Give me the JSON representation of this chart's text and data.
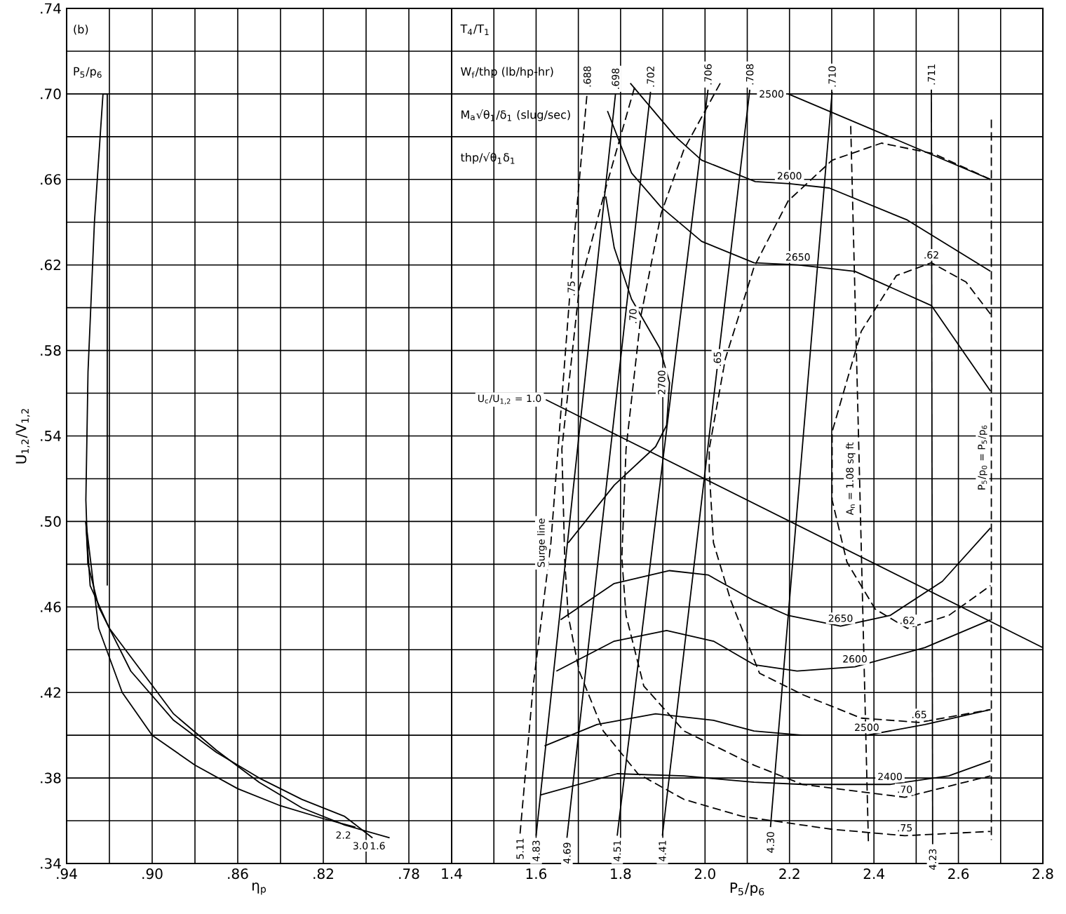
{
  "chart_data": [
    {
      "type": "line",
      "xlabel": "η$_{p}$",
      "ylabel": "U$_{1,2}$/V$_{1,2}$",
      "xlim": [
        0.94,
        0.76
      ],
      "xticks": [
        {
          "value": 0.94,
          "label": ".94"
        },
        {
          "value": 0.92,
          "label": null
        },
        {
          "value": 0.9,
          "label": ".90"
        },
        {
          "value": 0.88,
          "label": null
        },
        {
          "value": 0.86,
          "label": ".86"
        },
        {
          "value": 0.84,
          "label": null
        },
        {
          "value": 0.82,
          "label": ".82"
        },
        {
          "value": 0.8,
          "label": null
        },
        {
          "value": 0.78,
          "label": ".78"
        },
        {
          "value": 0.76,
          "label": null
        }
      ],
      "ylim": [
        0.34,
        0.74
      ],
      "yticks": [
        {
          "value": 0.34,
          "label": ".34"
        },
        {
          "value": 0.36,
          "label": null
        },
        {
          "value": 0.38,
          "label": ".38"
        },
        {
          "value": 0.4,
          "label": null
        },
        {
          "value": 0.42,
          "label": ".42"
        },
        {
          "value": 0.44,
          "label": null
        },
        {
          "value": 0.46,
          "label": ".46"
        },
        {
          "value": 0.48,
          "label": null
        },
        {
          "value": 0.5,
          "label": ".50"
        },
        {
          "value": 0.52,
          "label": null
        },
        {
          "value": 0.54,
          "label": ".54"
        },
        {
          "value": 0.56,
          "label": null
        },
        {
          "value": 0.58,
          "label": ".58"
        },
        {
          "value": 0.6,
          "label": null
        },
        {
          "value": 0.62,
          "label": ".62"
        },
        {
          "value": 0.64,
          "label": null
        },
        {
          "value": 0.66,
          "label": ".66"
        },
        {
          "value": 0.68,
          "label": null
        },
        {
          "value": 0.7,
          "label": ".70"
        },
        {
          "value": 0.72,
          "label": null
        },
        {
          "value": 0.74,
          "label": ".74"
        }
      ],
      "grid": true,
      "series": [
        {
          "line_style": "solid",
          "color": "#000000",
          "x": [
            0.921,
            0.921,
            0.923,
            0.927,
            0.93,
            0.931,
            0.93
          ],
          "values": [
            0.47,
            0.7,
            0.7,
            0.64,
            0.57,
            0.51,
            0.48
          ]
        },
        {
          "name": "1.6",
          "line_style": "solid",
          "color": "#000000",
          "x": [
            0.789,
            0.81,
            0.83,
            0.85,
            0.87,
            0.89,
            0.905,
            0.92,
            0.929,
            0.931
          ],
          "values": [
            0.352,
            0.358,
            0.366,
            0.378,
            0.393,
            0.41,
            0.43,
            0.45,
            0.47,
            0.5
          ]
        },
        {
          "name": "3.0",
          "line_style": "solid",
          "color": "#000000",
          "x": [
            0.797,
            0.81,
            0.83,
            0.85,
            0.87,
            0.89,
            0.91,
            0.925,
            0.93,
            0.931
          ],
          "values": [
            0.352,
            0.362,
            0.37,
            0.38,
            0.392,
            0.407,
            0.43,
            0.46,
            0.48,
            0.5
          ]
        },
        {
          "name": "2.2",
          "line_style": "solid",
          "color": "#000000",
          "x": [
            0.805,
            0.82,
            0.84,
            0.86,
            0.88,
            0.9,
            0.914,
            0.925,
            0.931
          ],
          "values": [
            0.357,
            0.361,
            0.367,
            0.375,
            0.386,
            0.4,
            0.42,
            0.45,
            0.5
          ]
        }
      ],
      "annotations": [
        "(b)",
        "P$_{5}$/p$_{6}$"
      ]
    },
    {
      "type": "line",
      "xlabel": "P$_{5}$/p$_{6}$",
      "xlim": [
        1.4,
        2.8
      ],
      "xticks": [
        {
          "value": 1.4,
          "label": "1.4"
        },
        {
          "value": 1.5,
          "label": null
        },
        {
          "value": 1.6,
          "label": "1.6"
        },
        {
          "value": 1.7,
          "label": null
        },
        {
          "value": 1.8,
          "label": "1.8"
        },
        {
          "value": 1.9,
          "label": null
        },
        {
          "value": 2.0,
          "label": "2.0"
        },
        {
          "value": 2.1,
          "label": null
        },
        {
          "value": 2.2,
          "label": "2.2"
        },
        {
          "value": 2.3,
          "label": null
        },
        {
          "value": 2.4,
          "label": "2.4"
        },
        {
          "value": 2.5,
          "label": null
        },
        {
          "value": 2.6,
          "label": "2.6"
        },
        {
          "value": 2.7,
          "label": null
        },
        {
          "value": 2.8,
          "label": "2.8"
        }
      ],
      "ylim": [
        0.34,
        0.74
      ],
      "yticks": [
        {
          "value": 0.34,
          "label": null
        },
        {
          "value": 0.36,
          "label": null
        },
        {
          "value": 0.38,
          "label": null
        },
        {
          "value": 0.4,
          "label": null
        },
        {
          "value": 0.42,
          "label": null
        },
        {
          "value": 0.44,
          "label": null
        },
        {
          "value": 0.46,
          "label": null
        },
        {
          "value": 0.48,
          "label": null
        },
        {
          "value": 0.5,
          "label": null
        },
        {
          "value": 0.52,
          "label": null
        },
        {
          "value": 0.54,
          "label": null
        },
        {
          "value": 0.56,
          "label": null
        },
        {
          "value": 0.58,
          "label": null
        },
        {
          "value": 0.6,
          "label": null
        },
        {
          "value": 0.62,
          "label": null
        },
        {
          "value": 0.64,
          "label": null
        },
        {
          "value": 0.66,
          "label": null
        },
        {
          "value": 0.68,
          "label": null
        },
        {
          "value": 0.7,
          "label": null
        },
        {
          "value": 0.72,
          "label": null
        },
        {
          "value": 0.74,
          "label": null
        }
      ],
      "tick_labels": "x",
      "grid": true,
      "series": [
        {
          "name": "5.11",
          "line_style": "dashed",
          "color": "#000000",
          "x": [
            1.562,
            1.593,
            1.635,
            1.689,
            1.721
          ],
          "values": [
            0.354,
            0.423,
            0.49,
            0.63,
            0.701
          ]
        },
        {
          "name": "4.83",
          "line_style": "solid",
          "color": "#000000",
          "x": [
            1.6,
            1.788
          ],
          "values": [
            0.353,
            0.7
          ]
        },
        {
          "name": "4.69",
          "line_style": "solid",
          "color": "#000000",
          "x": [
            1.673,
            1.871
          ],
          "values": [
            0.352,
            0.701
          ]
        },
        {
          "name": "4.51",
          "line_style": "solid",
          "color": "#000000",
          "x": [
            1.792,
            2.007
          ],
          "values": [
            0.353,
            0.702
          ]
        },
        {
          "name": "4.41",
          "line_style": "solid",
          "color": "#000000",
          "x": [
            1.899,
            2.106
          ],
          "values": [
            0.353,
            0.702
          ]
        },
        {
          "name": "4.30",
          "line_style": "solid",
          "color": "#000000",
          "x": [
            2.155,
            2.301
          ],
          "values": [
            0.357,
            0.701
          ]
        },
        {
          "name": "4.23",
          "line_style": "solid",
          "color": "#000000",
          "x": [
            2.539,
            2.536
          ],
          "values": [
            0.349,
            0.702
          ]
        },
        {
          "name": "U$_{c}$/U$_{1,2}$ = 1.0",
          "line_style": "solid",
          "color": "#000000",
          "x": [
            1.623,
            2.8
          ],
          "values": [
            0.557,
            0.441
          ]
        },
        {
          "line_style": "solid",
          "color": "#000000",
          "x": [
            2.197,
            2.676
          ],
          "values": [
            0.7,
            0.66
          ]
        },
        {
          "line_style": "solid",
          "color": "#000000",
          "x": [
            1.823,
            1.93,
            1.992,
            2.119,
            2.2,
            2.294,
            2.479,
            2.676
          ],
          "values": [
            0.705,
            0.68,
            0.669,
            0.659,
            0.658,
            0.656,
            0.641,
            0.617
          ]
        },
        {
          "line_style": "solid",
          "color": "#000000",
          "x": [
            1.769,
            1.826,
            1.896,
            1.992,
            2.116,
            2.22,
            2.355,
            2.536,
            2.676
          ],
          "values": [
            0.692,
            0.663,
            0.647,
            0.631,
            0.621,
            0.62,
            0.617,
            0.601,
            0.561
          ]
        },
        {
          "line_style": "solid",
          "color": "#000000",
          "x": [
            1.765,
            1.785,
            1.826,
            1.893,
            1.916,
            1.909,
            1.883,
            1.785,
            1.676
          ],
          "values": [
            0.652,
            0.628,
            0.604,
            0.581,
            0.565,
            0.545,
            0.535,
            0.517,
            0.49
          ]
        },
        {
          "line_style": "solid",
          "color": "#000000",
          "x": [
            1.658,
            1.785,
            1.916,
            2.007,
            2.116,
            2.197,
            2.321,
            2.438,
            2.562,
            2.676
          ],
          "values": [
            0.454,
            0.471,
            0.477,
            0.475,
            0.463,
            0.456,
            0.451,
            0.456,
            0.472,
            0.497
          ]
        },
        {
          "line_style": "solid",
          "color": "#000000",
          "x": [
            1.648,
            1.785,
            1.909,
            2.02,
            2.116,
            2.218,
            2.355,
            2.521,
            2.676
          ],
          "values": [
            0.43,
            0.444,
            0.449,
            0.444,
            0.433,
            0.43,
            0.432,
            0.441,
            0.454
          ]
        },
        {
          "line_style": "solid",
          "color": "#000000",
          "x": [
            1.62,
            1.744,
            1.883,
            2.02,
            2.116,
            2.231,
            2.383,
            2.521,
            2.676
          ],
          "values": [
            0.395,
            0.405,
            0.41,
            0.407,
            0.402,
            0.4,
            0.4,
            0.405,
            0.412
          ]
        },
        {
          "line_style": "solid",
          "color": "#000000",
          "x": [
            1.61,
            1.792,
            1.95,
            2.116,
            2.231,
            2.438,
            2.577,
            2.676
          ],
          "values": [
            0.372,
            0.382,
            0.381,
            0.378,
            0.377,
            0.377,
            0.381,
            0.388
          ]
        },
        {
          "line_style": "dashed",
          "color": "#000000",
          "x": [
            1.833,
            1.765,
            1.702,
            1.661,
            1.668,
            1.676,
            1.702,
            1.759,
            1.841,
            1.95,
            2.089,
            2.301,
            2.473,
            2.676
          ],
          "values": [
            0.703,
            0.656,
            0.609,
            0.534,
            0.481,
            0.456,
            0.43,
            0.402,
            0.382,
            0.37,
            0.362,
            0.356,
            0.353,
            0.355
          ]
        },
        {
          "line_style": "dashed",
          "color": "#000000",
          "x": [
            2.036,
            1.95,
            1.896,
            1.848,
            1.813,
            1.803,
            1.813,
            1.855,
            1.95,
            2.116,
            2.231,
            2.473,
            2.676
          ],
          "values": [
            0.705,
            0.674,
            0.644,
            0.596,
            0.534,
            0.483,
            0.456,
            0.423,
            0.402,
            0.386,
            0.377,
            0.371,
            0.381
          ]
        },
        {
          "line_style": "dashed",
          "color": "#000000",
          "x": [
            2.676,
            2.542,
            2.418,
            2.301,
            2.197,
            2.116,
            2.048,
            2.01,
            2.01,
            2.02,
            2.061,
            2.129,
            2.231,
            2.37,
            2.507,
            2.676
          ],
          "values": [
            0.66,
            0.672,
            0.677,
            0.669,
            0.65,
            0.619,
            0.576,
            0.534,
            0.524,
            0.49,
            0.463,
            0.429,
            0.419,
            0.408,
            0.406,
            0.412
          ]
        },
        {
          "line_style": "dashed",
          "color": "#000000",
          "x": [
            2.676,
            2.618,
            2.536,
            2.453,
            2.37,
            2.301,
            2.301,
            2.336,
            2.403,
            2.479,
            2.577,
            2.676
          ],
          "values": [
            0.597,
            0.612,
            0.621,
            0.615,
            0.589,
            0.542,
            0.51,
            0.481,
            0.459,
            0.45,
            0.456,
            0.47
          ]
        },
        {
          "line_style": "dashed",
          "color": "#000000",
          "x": [
            2.345,
            2.366,
            2.387
          ],
          "values": [
            0.685,
            0.52,
            0.349
          ]
        },
        {
          "line_style": "dashed",
          "color": "#000000",
          "x": [
            2.678,
            2.678,
            2.678
          ],
          "values": [
            0.688,
            0.53,
            0.351
          ]
        }
      ],
      "annotations": [
        {
          "text": ".688",
          "x": 1.721,
          "y": 0.701
        },
        {
          "text": ".698",
          "x": 1.788,
          "y": 0.7
        },
        {
          "text": ".702",
          "x": 1.871,
          "y": 0.701
        },
        {
          "text": ".706",
          "x": 2.007,
          "y": 0.702
        },
        {
          "text": ".708",
          "x": 2.106,
          "y": 0.702
        },
        {
          "text": ".710",
          "x": 2.301,
          "y": 0.701
        },
        {
          "text": ".711",
          "x": 2.536,
          "y": 0.702
        },
        {
          "text": "Surge line",
          "x": 1.635,
          "y": 0.49
        },
        {
          "text": "2500",
          "x": 2.197,
          "y": 0.7
        },
        {
          "text": "2600",
          "x": 2.2,
          "y": 0.658
        },
        {
          "text": "2650",
          "x": 2.22,
          "y": 0.62
        },
        {
          "text": "2700",
          "x": 1.916,
          "y": 0.565
        },
        {
          "text": "2650",
          "x": 2.321,
          "y": 0.451
        },
        {
          "text": "2600",
          "x": 2.355,
          "y": 0.432
        },
        {
          "text": "2500",
          "x": 2.383,
          "y": 0.4
        },
        {
          "text": "2400",
          "x": 2.438,
          "y": 0.377
        },
        {
          "text": ".75",
          "x": 1.702,
          "y": 0.609
        },
        {
          "text": ".70",
          "x": 1.848,
          "y": 0.596
        },
        {
          "text": ".65",
          "x": 2.048,
          "y": 0.576
        },
        {
          "text": ".62",
          "x": 2.536,
          "y": 0.621
        },
        {
          "text": ".62",
          "x": 2.479,
          "y": 0.45
        },
        {
          "text": ".65",
          "x": 2.507,
          "y": 0.406
        },
        {
          "text": ".70",
          "x": 2.473,
          "y": 0.371
        },
        {
          "text": ".75",
          "x": 2.473,
          "y": 0.353
        },
        {
          "text": "A$_{n}$ = 1.08 sq ft",
          "x": 2.366,
          "y": 0.52
        },
        {
          "text": "P$_{5}$/p$_{0}$ = P$_{5}$/p$_{6}$",
          "x": 2.678,
          "y": 0.53
        },
        "T$_{4}$/T$_{1}$",
        "W$_{f}$/thp (lb/hp-hr)",
        "M$_{a}$√θ$_{1}$/δ$_{1}$ (slug/sec)",
        "thp/√θ$_{1}$δ$_{1}$"
      ]
    }
  ]
}
